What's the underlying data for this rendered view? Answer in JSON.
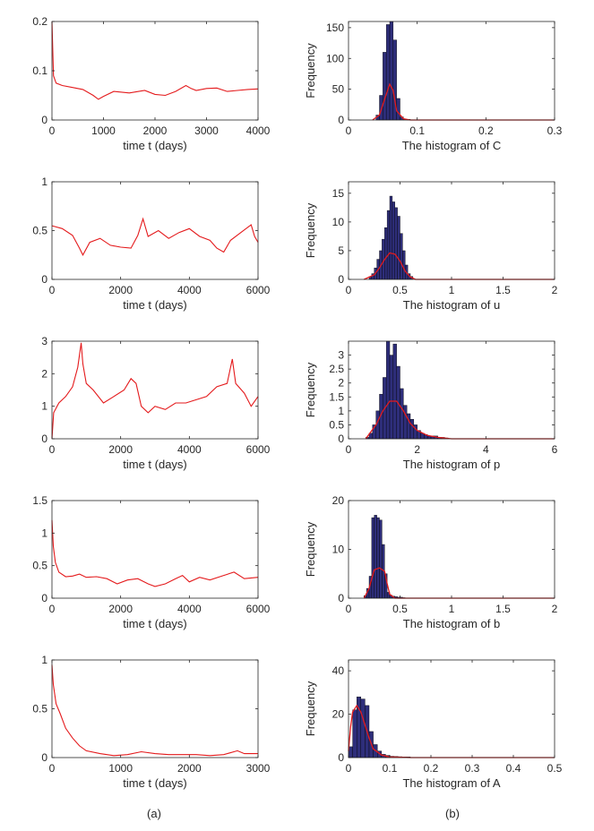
{
  "captions": {
    "left": "(a)",
    "right": "(b)"
  },
  "colors": {
    "line": "#e41a1c",
    "bar": "#2e2e7a",
    "barEdge": "#000000",
    "axis": "#262626"
  },
  "chart_data": [
    {
      "type": "line",
      "name": "ts-C",
      "xlabel": "time t (days)",
      "ylabel": "",
      "xlim": [
        0,
        4000
      ],
      "ylim": [
        0,
        0.2
      ],
      "xticks": [
        0,
        1000,
        2000,
        3000,
        4000
      ],
      "xtick_labels": [
        "0",
        "1000",
        "2000",
        "3000",
        "4000"
      ],
      "yticks": [
        0,
        0.1,
        0.2
      ],
      "ytick_labels": [
        "0",
        "0.1",
        "0.2"
      ],
      "x": [
        0,
        30,
        80,
        200,
        400,
        600,
        800,
        900,
        1000,
        1200,
        1500,
        1800,
        2000,
        2200,
        2400,
        2600,
        2700,
        2800,
        3000,
        3200,
        3400,
        3600,
        3800,
        4000
      ],
      "y": [
        0.2,
        0.09,
        0.075,
        0.07,
        0.066,
        0.062,
        0.05,
        0.042,
        0.048,
        0.058,
        0.055,
        0.06,
        0.052,
        0.05,
        0.058,
        0.07,
        0.064,
        0.06,
        0.064,
        0.065,
        0.058,
        0.06,
        0.062,
        0.063
      ]
    },
    {
      "type": "bar",
      "name": "hist-C",
      "xlabel": "The histogram of C",
      "ylabel": "Frequency",
      "xlim": [
        0,
        0.3
      ],
      "ylim": [
        0,
        160
      ],
      "xticks": [
        0,
        0.1,
        0.2,
        0.3
      ],
      "xtick_labels": [
        "0",
        "0.1",
        "0.2",
        "0.3"
      ],
      "yticks": [
        0,
        50,
        100,
        150
      ],
      "ytick_labels": [
        "0",
        "50",
        "100",
        "150"
      ],
      "bin_width": 0.005,
      "bin_centers": [
        0.0425,
        0.0475,
        0.0525,
        0.0575,
        0.0625,
        0.0675,
        0.0725,
        0.0775,
        0.0825,
        0.0875
      ],
      "values": [
        8,
        40,
        110,
        155,
        160,
        130,
        35,
        5,
        1,
        1
      ],
      "curve_x": [
        0.035,
        0.045,
        0.05,
        0.055,
        0.06,
        0.065,
        0.07,
        0.08,
        0.09,
        0.3
      ],
      "curve_y": [
        0,
        8,
        25,
        42,
        58,
        48,
        15,
        2,
        0,
        0
      ]
    },
    {
      "type": "line",
      "name": "ts-u",
      "xlabel": "time t (days)",
      "ylabel": "",
      "xlim": [
        0,
        6000
      ],
      "ylim": [
        0,
        1
      ],
      "xticks": [
        0,
        2000,
        4000,
        6000
      ],
      "xtick_labels": [
        "0",
        "2000",
        "4000",
        "6000"
      ],
      "yticks": [
        0,
        0.5,
        1
      ],
      "ytick_labels": [
        "0",
        "0.5",
        "1"
      ],
      "x": [
        0,
        300,
        600,
        800,
        900,
        1100,
        1400,
        1700,
        2000,
        2300,
        2500,
        2650,
        2800,
        3100,
        3400,
        3700,
        4000,
        4300,
        4600,
        4800,
        5000,
        5200,
        5500,
        5800,
        5900,
        6000
      ],
      "y": [
        0.55,
        0.52,
        0.45,
        0.32,
        0.25,
        0.38,
        0.42,
        0.35,
        0.33,
        0.32,
        0.45,
        0.62,
        0.44,
        0.5,
        0.42,
        0.48,
        0.52,
        0.44,
        0.4,
        0.32,
        0.28,
        0.4,
        0.48,
        0.56,
        0.44,
        0.38
      ]
    },
    {
      "type": "bar",
      "name": "hist-u",
      "xlabel": "The histogram of u",
      "ylabel": "Frequency",
      "xlim": [
        0,
        2
      ],
      "ylim": [
        0,
        17
      ],
      "xticks": [
        0,
        0.5,
        1,
        1.5,
        2
      ],
      "xtick_labels": [
        "0",
        "0.5",
        "1",
        "1.5",
        "2"
      ],
      "yticks": [
        0,
        5,
        10,
        15
      ],
      "ytick_labels": [
        "0",
        "5",
        "10",
        "15"
      ],
      "bin_width": 0.025,
      "bin_centers": [
        0.2125,
        0.2375,
        0.2625,
        0.2875,
        0.3125,
        0.3375,
        0.3625,
        0.3875,
        0.4125,
        0.4375,
        0.4625,
        0.4875,
        0.5125,
        0.5375,
        0.5625,
        0.5875,
        0.6125
      ],
      "values": [
        0.5,
        1,
        2,
        3.5,
        5,
        7,
        9,
        12,
        14.5,
        13.5,
        12.5,
        11,
        8,
        5,
        2.5,
        1,
        0.5
      ],
      "curve_x": [
        0.15,
        0.25,
        0.3,
        0.35,
        0.4,
        0.45,
        0.5,
        0.55,
        0.6,
        0.65,
        2
      ],
      "curve_y": [
        0,
        0.8,
        2,
        3.5,
        4.6,
        4.4,
        3.2,
        1.4,
        0.4,
        0,
        0
      ]
    },
    {
      "type": "line",
      "name": "ts-p",
      "xlabel": "time t (days)",
      "ylabel": "",
      "xlim": [
        0,
        6000
      ],
      "ylim": [
        0,
        3
      ],
      "xticks": [
        0,
        2000,
        4000,
        6000
      ],
      "xtick_labels": [
        "0",
        "2000",
        "4000",
        "6000"
      ],
      "yticks": [
        0,
        1,
        2,
        3
      ],
      "ytick_labels": [
        "0",
        "1",
        "2",
        "3"
      ],
      "x": [
        0,
        50,
        200,
        400,
        600,
        750,
        850,
        900,
        1000,
        1200,
        1500,
        1800,
        2100,
        2300,
        2450,
        2600,
        2800,
        3000,
        3300,
        3600,
        3900,
        4200,
        4500,
        4800,
        5100,
        5250,
        5350,
        5600,
        5800,
        6000
      ],
      "y": [
        0,
        0.8,
        1.1,
        1.3,
        1.6,
        2.2,
        2.95,
        2.3,
        1.7,
        1.5,
        1.1,
        1.3,
        1.5,
        1.85,
        1.7,
        1.0,
        0.8,
        1.0,
        0.9,
        1.1,
        1.1,
        1.2,
        1.3,
        1.6,
        1.7,
        2.45,
        1.7,
        1.4,
        1.0,
        1.3
      ]
    },
    {
      "type": "bar",
      "name": "hist-p",
      "xlabel": "The histogram of p",
      "ylabel": "Frequency",
      "xlim": [
        0,
        6
      ],
      "ylim": [
        0,
        3.5
      ],
      "xticks": [
        0,
        2,
        4,
        6
      ],
      "xtick_labels": [
        "0",
        "2",
        "4",
        "6"
      ],
      "yticks": [
        0,
        0.5,
        1,
        1.5,
        2,
        2.5,
        3
      ],
      "ytick_labels": [
        "0",
        "0.5",
        "1",
        "1.5",
        "2",
        "2.5",
        "3"
      ],
      "bin_width": 0.1,
      "bin_centers": [
        0.55,
        0.65,
        0.75,
        0.85,
        0.95,
        1.05,
        1.15,
        1.25,
        1.35,
        1.45,
        1.55,
        1.65,
        1.75,
        1.85,
        1.95,
        2.05,
        2.15,
        2.25,
        2.35,
        2.45,
        2.55,
        2.65,
        2.75,
        2.85
      ],
      "values": [
        0.05,
        0.2,
        0.5,
        1.0,
        1.6,
        2.2,
        3.5,
        3.0,
        3.4,
        2.6,
        1.8,
        1.2,
        0.9,
        0.7,
        0.5,
        0.3,
        0.2,
        0.15,
        0.1,
        0.1,
        0.1,
        0.05,
        0.05,
        0.03
      ],
      "curve_x": [
        0.5,
        0.8,
        1.0,
        1.2,
        1.4,
        1.6,
        1.8,
        2.0,
        2.3,
        2.6,
        3.0,
        6.0
      ],
      "curve_y": [
        0,
        0.5,
        1.0,
        1.35,
        1.35,
        1.0,
        0.55,
        0.3,
        0.12,
        0.05,
        0,
        0
      ]
    },
    {
      "type": "line",
      "name": "ts-b",
      "xlabel": "time t (days)",
      "ylabel": "",
      "xlim": [
        0,
        6000
      ],
      "ylim": [
        0,
        1.5
      ],
      "xticks": [
        0,
        2000,
        4000,
        6000
      ],
      "xtick_labels": [
        "0",
        "2000",
        "4000",
        "6000"
      ],
      "yticks": [
        0,
        0.5,
        1,
        1.5
      ],
      "ytick_labels": [
        "0",
        "0.5",
        "1",
        "1.5"
      ],
      "x": [
        0,
        40,
        100,
        200,
        400,
        600,
        800,
        1000,
        1300,
        1600,
        1900,
        2200,
        2500,
        2800,
        3000,
        3300,
        3600,
        3800,
        4000,
        4300,
        4600,
        5000,
        5300,
        5600,
        6000
      ],
      "y": [
        1.2,
        0.8,
        0.55,
        0.4,
        0.33,
        0.34,
        0.37,
        0.32,
        0.33,
        0.3,
        0.22,
        0.28,
        0.3,
        0.22,
        0.18,
        0.22,
        0.3,
        0.35,
        0.25,
        0.32,
        0.28,
        0.35,
        0.4,
        0.3,
        0.32
      ]
    },
    {
      "type": "bar",
      "name": "hist-b",
      "xlabel": "The histogram of b",
      "ylabel": "Frequency",
      "xlim": [
        0,
        2
      ],
      "ylim": [
        0,
        20
      ],
      "xticks": [
        0,
        0.5,
        1,
        1.5,
        2
      ],
      "xtick_labels": [
        "0",
        "0.5",
        "1",
        "1.5",
        "2"
      ],
      "yticks": [
        0,
        10,
        20
      ],
      "ytick_labels": [
        "0",
        "10",
        "20"
      ],
      "bin_width": 0.025,
      "bin_centers": [
        0.1625,
        0.1875,
        0.2125,
        0.2375,
        0.2625,
        0.2875,
        0.3125,
        0.3375,
        0.3625,
        0.3875,
        0.4125,
        0.4375,
        0.4625,
        0.4875,
        0.5125,
        0.5375
      ],
      "values": [
        0.5,
        2,
        4.5,
        16.5,
        17,
        16.5,
        16,
        11,
        5,
        1.2,
        0.6,
        0.4,
        0.3,
        0.2,
        0.2,
        0.1
      ],
      "curve_x": [
        0.15,
        0.2,
        0.225,
        0.25,
        0.3,
        0.35,
        0.375,
        0.4,
        0.45,
        2
      ],
      "curve_y": [
        0,
        2,
        4,
        5.8,
        6.2,
        5.5,
        3,
        0.8,
        0,
        0
      ]
    },
    {
      "type": "line",
      "name": "ts-A",
      "xlabel": "time t (days)",
      "ylabel": "",
      "xlim": [
        0,
        3000
      ],
      "ylim": [
        0,
        1
      ],
      "xticks": [
        0,
        1000,
        2000,
        3000
      ],
      "xtick_labels": [
        "0",
        "1000",
        "2000",
        "3000"
      ],
      "yticks": [
        0,
        0.5,
        1
      ],
      "ytick_labels": [
        "0",
        "0.5",
        "1"
      ],
      "x": [
        0,
        20,
        60,
        120,
        200,
        300,
        400,
        500,
        700,
        900,
        1100,
        1300,
        1500,
        1700,
        1900,
        2100,
        2300,
        2500,
        2700,
        2800,
        2900,
        3000
      ],
      "y": [
        0.95,
        0.75,
        0.55,
        0.45,
        0.3,
        0.2,
        0.12,
        0.07,
        0.04,
        0.02,
        0.03,
        0.06,
        0.04,
        0.03,
        0.03,
        0.03,
        0.02,
        0.03,
        0.07,
        0.04,
        0.04,
        0.04
      ]
    },
    {
      "type": "bar",
      "name": "hist-A",
      "xlabel": "The histogram of A",
      "ylabel": "Frequency",
      "xlim": [
        0,
        0.5
      ],
      "ylim": [
        0,
        45
      ],
      "xticks": [
        0,
        0.1,
        0.2,
        0.3,
        0.4,
        0.5
      ],
      "xtick_labels": [
        "0",
        "0.1",
        "0.2",
        "0.3",
        "0.4",
        "0.5"
      ],
      "yticks": [
        0,
        20,
        40
      ],
      "ytick_labels": [
        "0",
        "20",
        "40"
      ],
      "bin_width": 0.01,
      "bin_centers": [
        0.005,
        0.015,
        0.025,
        0.035,
        0.045,
        0.055,
        0.065,
        0.075,
        0.085,
        0.095,
        0.105,
        0.115,
        0.125,
        0.135,
        0.145
      ],
      "values": [
        5,
        22,
        28,
        27,
        24,
        12,
        6,
        3,
        1.5,
        1,
        0.6,
        0.5,
        0.4,
        0.3,
        0.3
      ],
      "curve_x": [
        0,
        0.005,
        0.01,
        0.02,
        0.03,
        0.04,
        0.05,
        0.06,
        0.08,
        0.1,
        0.15,
        0.5
      ],
      "curve_y": [
        3,
        14,
        21,
        24,
        21,
        15,
        9,
        4,
        1.2,
        0.3,
        0,
        0
      ]
    }
  ]
}
